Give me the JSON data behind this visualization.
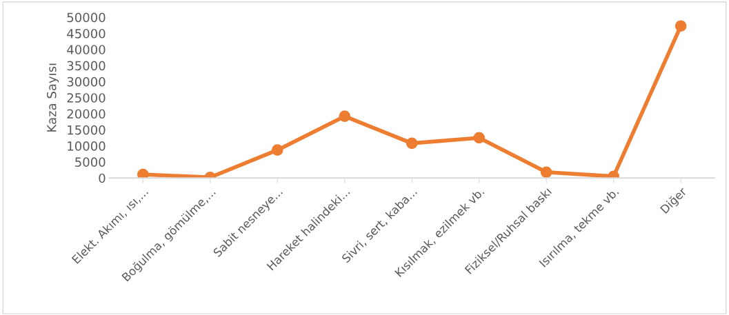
{
  "chart_data": {
    "type": "line",
    "ylabel": "Kaza Sayısı",
    "categories": [
      "Elekt. Akımı, ısı,...",
      "Boğulma, gömülme,...",
      "Sabit nesneye...",
      "Hareket halindeki...",
      "Sivri, sert, kaba...",
      "Kısılmak, ezilmek vb.",
      "Fiziksel/Ruhsal baskı",
      "Isırılma, tekme vb.",
      "Diğer"
    ],
    "series": [
      {
        "color": "#ed7d31",
        "values": [
          1100,
          200,
          8700,
          19200,
          10800,
          12500,
          1800,
          500,
          47300
        ]
      }
    ],
    "ylim": [
      0,
      50000
    ],
    "yticks": [
      0,
      5000,
      10000,
      15000,
      20000,
      25000,
      30000,
      35000,
      40000,
      45000,
      50000
    ],
    "marker": "circle",
    "line_style": "solid",
    "grid": false
  }
}
